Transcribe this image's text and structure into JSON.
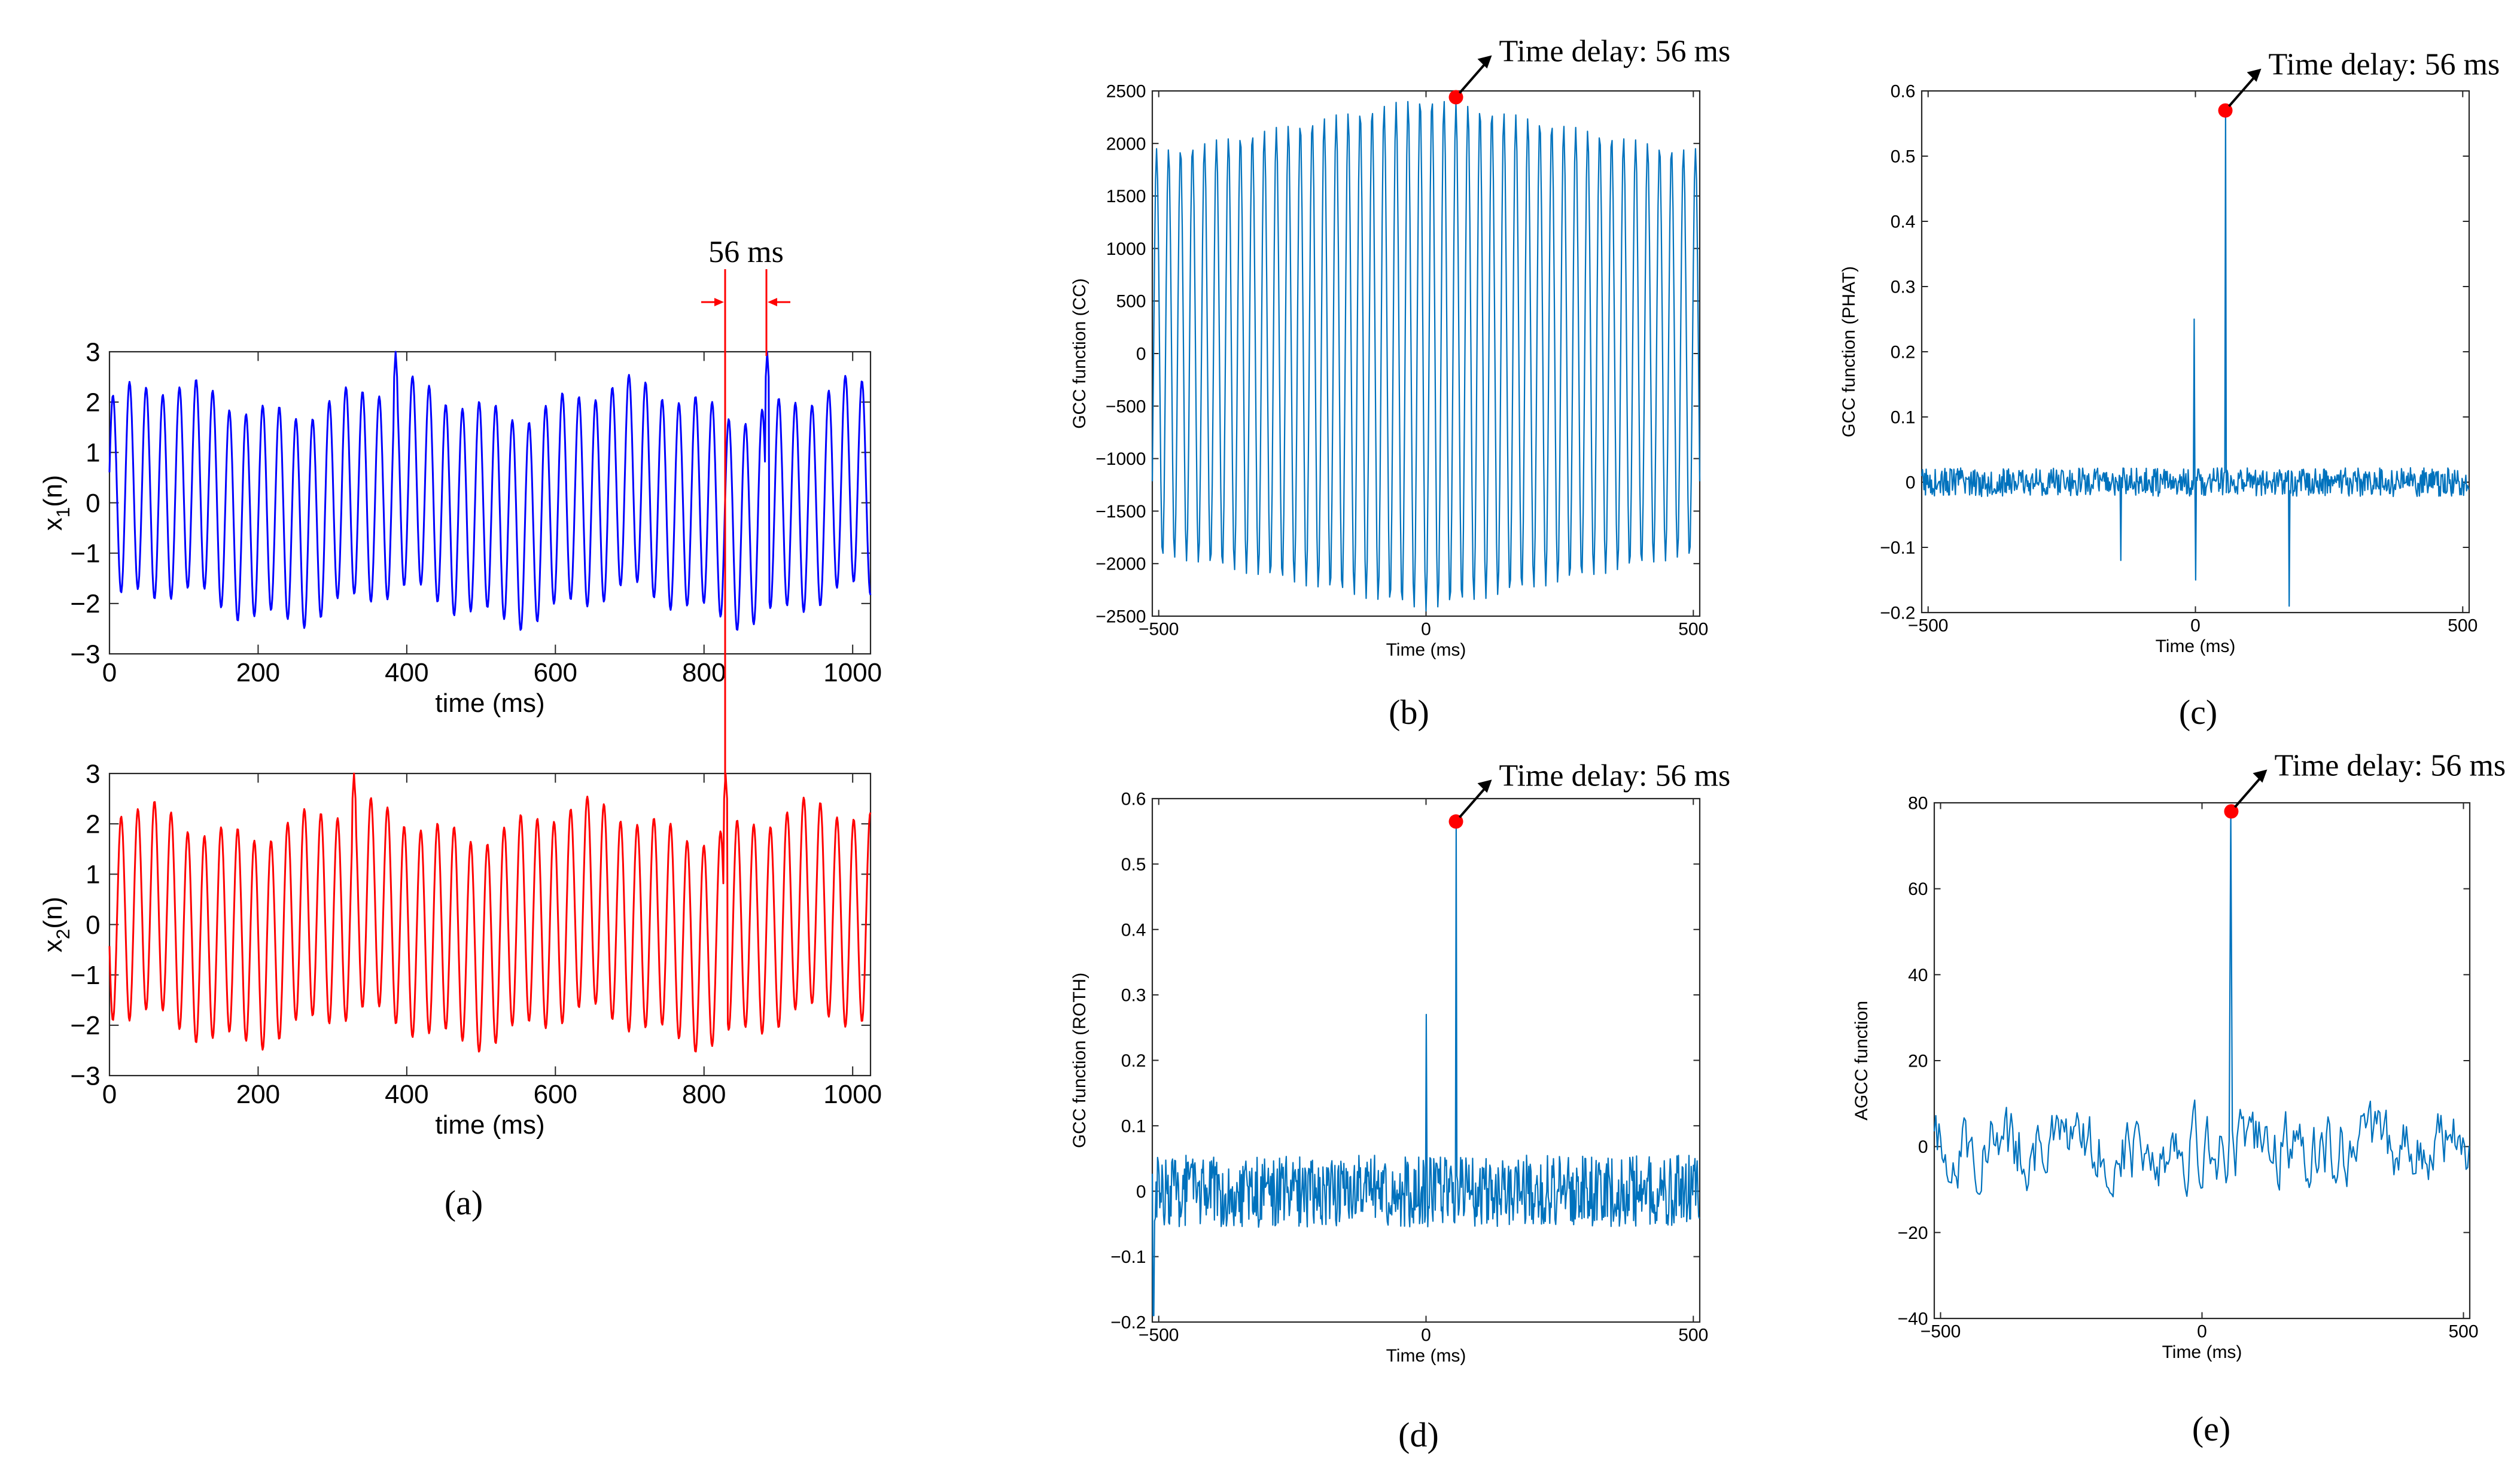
{
  "colors": {
    "blue": "#0000ff",
    "red": "#ff0000",
    "matlab_blue": "#0072bd",
    "marker": "#ff0000"
  },
  "annotation_a": "56 ms",
  "chart_data": [
    {
      "id": "a1",
      "panel_label": "",
      "type": "line",
      "title": "",
      "xlabel": "time (ms)",
      "ylabel": "x1(n)",
      "ylabel_main": "x",
      "ylabel_sub": "1",
      "ylabel_tail": "(n)",
      "xlim": [
        0,
        1024
      ],
      "ylim": [
        -3,
        3
      ],
      "xticks": [
        0,
        200,
        400,
        600,
        800,
        1000
      ],
      "yticks": [
        -3,
        -2,
        -1,
        0,
        1,
        2,
        3
      ],
      "series": [
        {
          "name": "x1(n)",
          "color": "#0000ff",
          "signal": "sinusoid",
          "period_ms": 22.4,
          "amplitude_range": [
            -2.5,
            2.6
          ],
          "spike_at_ms": [
            385,
            885
          ]
        }
      ]
    },
    {
      "id": "a2",
      "panel_label": "(a)",
      "type": "line",
      "title": "",
      "xlabel": "time (ms)",
      "ylabel": "x2(n)",
      "ylabel_main": "x",
      "ylabel_sub": "2",
      "ylabel_tail": "(n)",
      "xlim": [
        0,
        1024
      ],
      "ylim": [
        -3,
        3
      ],
      "xticks": [
        0,
        200,
        400,
        600,
        800,
        1000
      ],
      "yticks": [
        -3,
        -2,
        -1,
        0,
        1,
        2,
        3
      ],
      "series": [
        {
          "name": "x2(n)",
          "color": "#ff0000",
          "signal": "sinusoid",
          "period_ms": 22.4,
          "amplitude_range": [
            -2.6,
            2.6
          ],
          "spike_at_ms": [
            329,
            829
          ]
        }
      ]
    },
    {
      "id": "b",
      "panel_label": "(b)",
      "type": "line",
      "title": "",
      "xlabel": "Time (ms)",
      "ylabel": "GCC function (CC)",
      "xlim": [
        -512,
        512
      ],
      "ylim": [
        -2500,
        2500
      ],
      "xticks": [
        -500,
        0,
        500
      ],
      "yticks": [
        -2500,
        -2000,
        -1500,
        -1000,
        -500,
        0,
        500,
        1000,
        1500,
        2000,
        2500
      ],
      "annotation": "Time delay: 56 ms",
      "peak": {
        "x": 56,
        "y": 2440
      },
      "series": [
        {
          "name": "GCC (CC)",
          "color": "#0072bd",
          "signal": "oscillation",
          "period_ms": 22.4,
          "envelope_edge": 1950,
          "envelope_peak": 2450
        }
      ]
    },
    {
      "id": "c",
      "panel_label": "(c)",
      "type": "line",
      "title": "",
      "xlabel": "Time (ms)",
      "ylabel": "GCC function (PHAT)",
      "xlim": [
        -512,
        512
      ],
      "ylim": [
        -0.2,
        0.6
      ],
      "xticks": [
        -500,
        0,
        500
      ],
      "yticks": [
        -0.2,
        -0.1,
        0,
        0.1,
        0.2,
        0.3,
        0.4,
        0.5,
        0.6
      ],
      "annotation": "Time delay: 56 ms",
      "peak": {
        "x": 56,
        "y": 0.57
      },
      "series": [
        {
          "name": "GCC (PHAT)",
          "color": "#0072bd",
          "signal": "noise",
          "noise_amp": 0.022,
          "spikes": [
            [
              56,
              0.57
            ],
            [
              -2,
              0.25
            ],
            [
              0,
              -0.15
            ],
            [
              175,
              -0.19
            ],
            [
              -140,
              -0.12
            ]
          ]
        }
      ]
    },
    {
      "id": "d",
      "panel_label": "(d)",
      "type": "line",
      "title": "",
      "xlabel": "Time (ms)",
      "ylabel": "GCC function (ROTH)",
      "xlim": [
        -512,
        512
      ],
      "ylim": [
        -0.2,
        0.6
      ],
      "xticks": [
        -500,
        0,
        500
      ],
      "yticks": [
        -0.2,
        -0.1,
        0,
        0.1,
        0.2,
        0.3,
        0.4,
        0.5,
        0.6
      ],
      "annotation": "Time delay: 56 ms",
      "peak": {
        "x": 56,
        "y": 0.565
      },
      "series": [
        {
          "name": "GCC (ROTH)",
          "color": "#0072bd",
          "signal": "noise",
          "noise_amp": 0.055,
          "spikes": [
            [
              56,
              0.565
            ],
            [
              0,
              0.27
            ],
            [
              -510,
              -0.19
            ]
          ]
        }
      ]
    },
    {
      "id": "e",
      "panel_label": "(e)",
      "type": "line",
      "title": "",
      "xlabel": "Time (ms)",
      "ylabel": "AGCC function",
      "xlim": [
        -512,
        512
      ],
      "ylim": [
        -40,
        80
      ],
      "xticks": [
        -500,
        0,
        500
      ],
      "yticks": [
        -40,
        -20,
        0,
        20,
        40,
        60,
        80
      ],
      "annotation": "Time delay: 56 ms",
      "peak": {
        "x": 56,
        "y": 78
      },
      "series": [
        {
          "name": "AGCC",
          "color": "#0072bd",
          "signal": "noise",
          "noise_amp": 6.5,
          "spikes": [
            [
              56,
              78
            ]
          ]
        }
      ]
    }
  ]
}
